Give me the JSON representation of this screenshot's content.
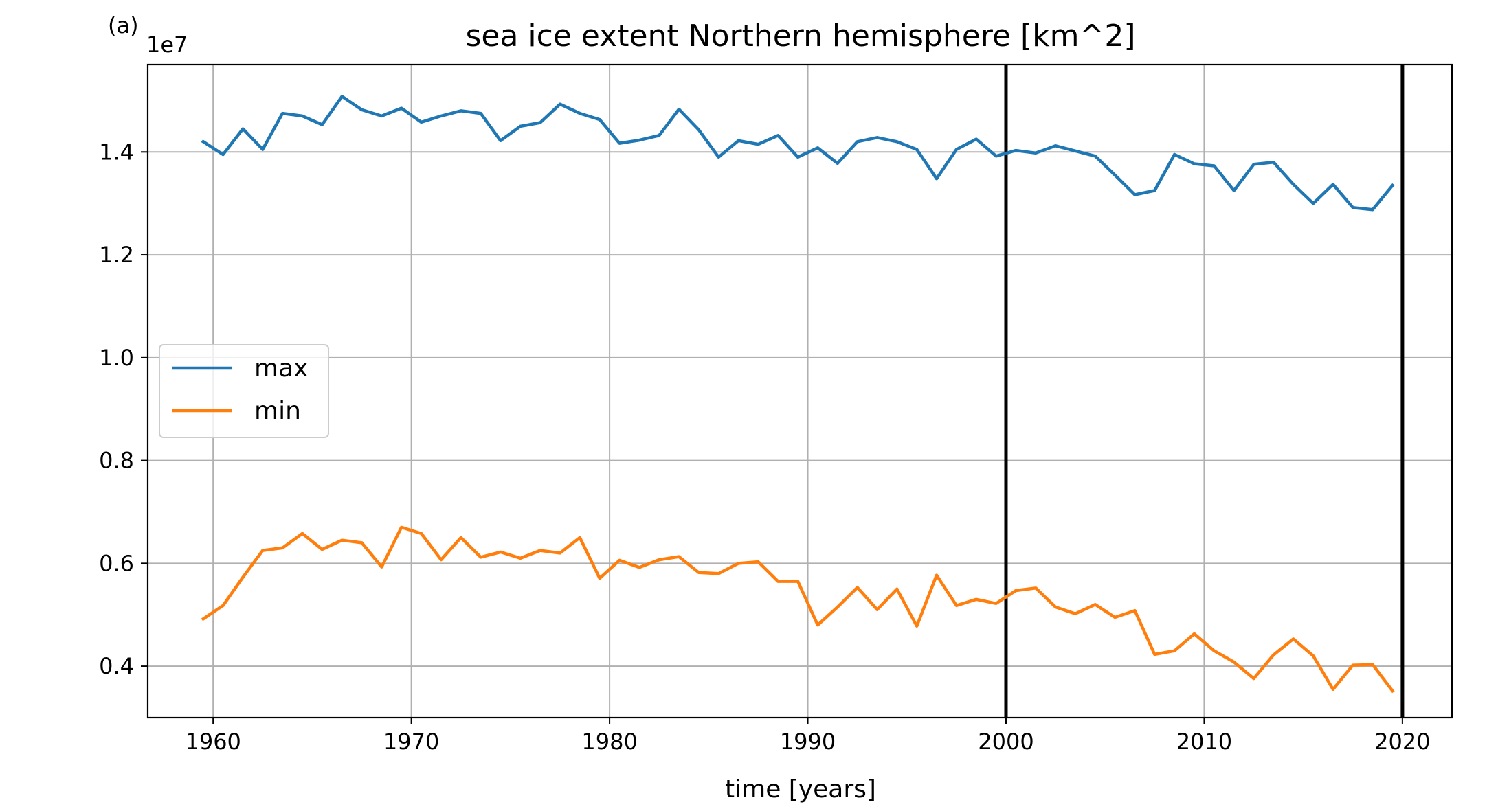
{
  "panel_label": "(a)",
  "chart_data": {
    "type": "line",
    "title": "sea ice extent Northern hemisphere [km^2]",
    "xlabel": "time [years]",
    "ylabel": "",
    "y_offset_label": "1e7",
    "y_scale": 10000000,
    "xlim": [
      1956.7,
      2022.5
    ],
    "ylim": [
      0.3,
      1.57
    ],
    "x_ticks": [
      1960,
      1970,
      1980,
      1990,
      2000,
      2010,
      2020
    ],
    "x_tick_labels": [
      "1960",
      "1970",
      "1980",
      "1990",
      "2000",
      "2010",
      "2020"
    ],
    "y_ticks": [
      0.4,
      0.6,
      0.8,
      1.0,
      1.2,
      1.4
    ],
    "y_tick_labels": [
      "0.4",
      "0.6",
      "0.8",
      "1.0",
      "1.2",
      "1.4"
    ],
    "grid": true,
    "legend_position": "center-left",
    "vertical_lines": [
      2000,
      2020
    ],
    "x": [
      1959.5,
      1960.5,
      1961.5,
      1962.5,
      1963.5,
      1964.5,
      1965.5,
      1966.5,
      1967.5,
      1968.5,
      1969.5,
      1970.5,
      1971.5,
      1972.5,
      1973.5,
      1974.5,
      1975.5,
      1976.5,
      1977.5,
      1978.5,
      1979.5,
      1980.5,
      1981.5,
      1982.5,
      1983.5,
      1984.5,
      1985.5,
      1986.5,
      1987.5,
      1988.5,
      1989.5,
      1990.5,
      1991.5,
      1992.5,
      1993.5,
      1994.5,
      1995.5,
      1996.5,
      1997.5,
      1998.5,
      1999.5,
      2000.5,
      2001.5,
      2002.5,
      2003.5,
      2004.5,
      2005.5,
      2006.5,
      2007.5,
      2008.5,
      2009.5,
      2010.5,
      2011.5,
      2012.5,
      2013.5,
      2014.5,
      2015.5,
      2016.5,
      2017.5,
      2018.5,
      2019.5
    ],
    "series": [
      {
        "name": "max",
        "color": "#1f77b4",
        "values": [
          1.42,
          1.395,
          1.445,
          1.405,
          1.475,
          1.47,
          1.453,
          1.508,
          1.482,
          1.47,
          1.485,
          1.458,
          1.47,
          1.48,
          1.475,
          1.422,
          1.45,
          1.457,
          1.493,
          1.475,
          1.463,
          1.417,
          1.423,
          1.432,
          1.483,
          1.443,
          1.39,
          1.422,
          1.415,
          1.432,
          1.39,
          1.408,
          1.378,
          1.42,
          1.428,
          1.42,
          1.405,
          1.348,
          1.405,
          1.425,
          1.392,
          1.403,
          1.398,
          1.412,
          1.402,
          1.392,
          1.355,
          1.317,
          1.325,
          1.395,
          1.377,
          1.373,
          1.325,
          1.376,
          1.38,
          1.337,
          1.3,
          1.337,
          1.292,
          1.288,
          1.335
        ]
      },
      {
        "name": "min",
        "color": "#ff7f0e",
        "values": [
          0.492,
          0.518,
          0.573,
          0.625,
          0.63,
          0.658,
          0.627,
          0.645,
          0.64,
          0.593,
          0.67,
          0.658,
          0.607,
          0.65,
          0.612,
          0.622,
          0.61,
          0.625,
          0.62,
          0.65,
          0.571,
          0.606,
          0.592,
          0.607,
          0.613,
          0.582,
          0.58,
          0.6,
          0.603,
          0.565,
          0.565,
          0.48,
          0.515,
          0.553,
          0.51,
          0.55,
          0.478,
          0.577,
          0.518,
          0.53,
          0.522,
          0.547,
          0.552,
          0.515,
          0.502,
          0.52,
          0.495,
          0.508,
          0.423,
          0.43,
          0.463,
          0.43,
          0.408,
          0.376,
          0.422,
          0.453,
          0.42,
          0.355,
          0.402,
          0.403,
          0.352
        ]
      }
    ]
  }
}
